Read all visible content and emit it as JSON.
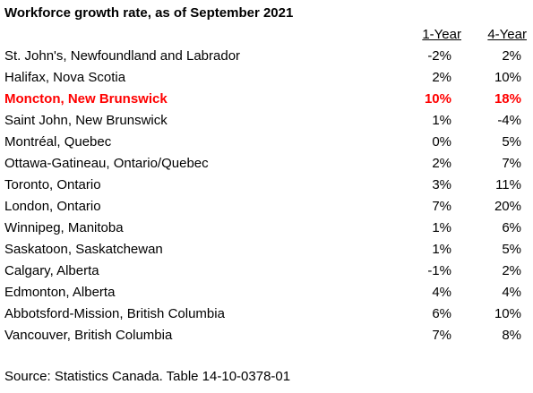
{
  "title": "Workforce growth rate, as of September 2021",
  "headers": {
    "one_year": "1-Year",
    "four_year": "4-Year"
  },
  "highlight_color": "#ff0000",
  "rows": [
    {
      "city": "St. John's, Newfoundland and Labrador",
      "one_year": "-2%",
      "four_year": "2%",
      "highlight": false
    },
    {
      "city": "Halifax, Nova Scotia",
      "one_year": "2%",
      "four_year": "10%",
      "highlight": false
    },
    {
      "city": "Moncton, New Brunswick",
      "one_year": "10%",
      "four_year": "18%",
      "highlight": true
    },
    {
      "city": "Saint John, New Brunswick",
      "one_year": "1%",
      "four_year": "-4%",
      "highlight": false
    },
    {
      "city": "Montréal, Quebec",
      "one_year": "0%",
      "four_year": "5%",
      "highlight": false
    },
    {
      "city": "Ottawa-Gatineau, Ontario/Quebec",
      "one_year": "2%",
      "four_year": "7%",
      "highlight": false
    },
    {
      "city": "Toronto, Ontario",
      "one_year": "3%",
      "four_year": "11%",
      "highlight": false
    },
    {
      "city": "London, Ontario",
      "one_year": "7%",
      "four_year": "20%",
      "highlight": false
    },
    {
      "city": "Winnipeg, Manitoba",
      "one_year": "1%",
      "four_year": "6%",
      "highlight": false
    },
    {
      "city": "Saskatoon, Saskatchewan",
      "one_year": "1%",
      "four_year": "5%",
      "highlight": false
    },
    {
      "city": "Calgary, Alberta",
      "one_year": "-1%",
      "four_year": "2%",
      "highlight": false
    },
    {
      "city": "Edmonton, Alberta",
      "one_year": "4%",
      "four_year": "4%",
      "highlight": false
    },
    {
      "city": "Abbotsford-Mission, British Columbia",
      "one_year": "6%",
      "four_year": "10%",
      "highlight": false
    },
    {
      "city": "Vancouver, British Columbia",
      "one_year": "7%",
      "four_year": "8%",
      "highlight": false
    }
  ],
  "source": "Source: Statistics Canada. Table 14-10-0378-01"
}
